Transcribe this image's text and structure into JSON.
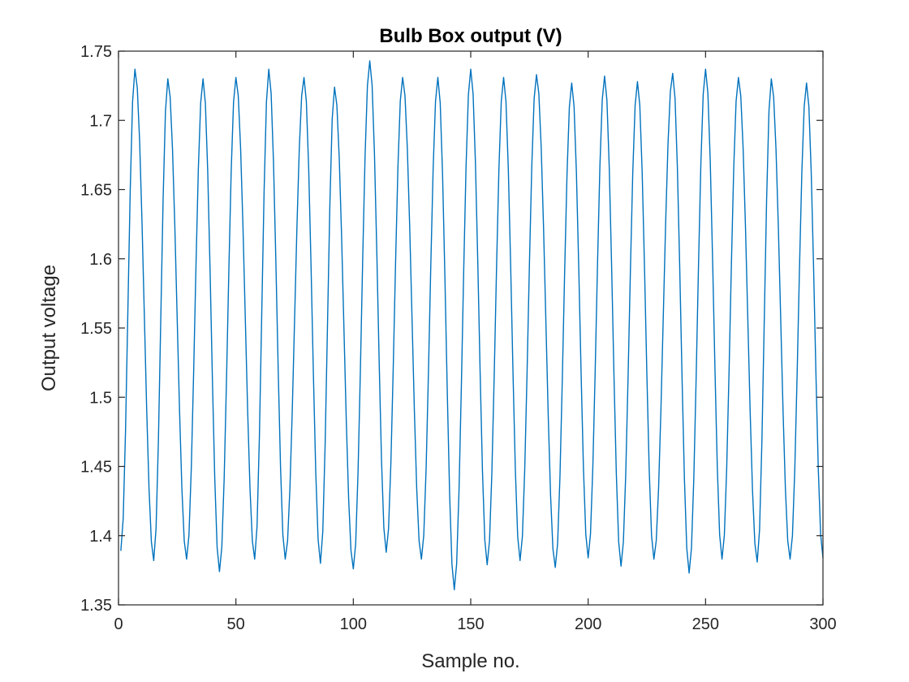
{
  "chart_data": {
    "type": "line",
    "title": "Bulb Box output (V)",
    "xlabel": "Sample no.",
    "ylabel": "Output voltage",
    "xlim": [
      0,
      300
    ],
    "ylim": [
      1.35,
      1.75
    ],
    "xticks": [
      0,
      50,
      100,
      150,
      200,
      250,
      300
    ],
    "xtick_labels": [
      "0",
      "50",
      "100",
      "150",
      "200",
      "250",
      "300"
    ],
    "yticks": [
      1.35,
      1.4,
      1.45,
      1.5,
      1.55,
      1.6,
      1.65,
      1.7,
      1.75
    ],
    "ytick_labels": [
      "1.35",
      "1.4",
      "1.45",
      "1.5",
      "1.55",
      "1.6",
      "1.65",
      "1.7",
      "1.75"
    ],
    "grid": false,
    "series": [
      {
        "color": "#0072BD",
        "peaks": [
          [
            7,
            1.737
          ],
          [
            21,
            1.73
          ],
          [
            36,
            1.73
          ],
          [
            50,
            1.731
          ],
          [
            64,
            1.737
          ],
          [
            79,
            1.731
          ],
          [
            92,
            1.724
          ],
          [
            107,
            1.743
          ],
          [
            121,
            1.731
          ],
          [
            136,
            1.731
          ],
          [
            150,
            1.737
          ],
          [
            164,
            1.731
          ],
          [
            178,
            1.733
          ],
          [
            193,
            1.727
          ],
          [
            207,
            1.732
          ],
          [
            221,
            1.728
          ],
          [
            236,
            1.734
          ],
          [
            250,
            1.737
          ],
          [
            264,
            1.731
          ],
          [
            278,
            1.73
          ],
          [
            293,
            1.727
          ]
        ],
        "troughs": [
          [
            1,
            1.389
          ],
          [
            15,
            1.382
          ],
          [
            29,
            1.383
          ],
          [
            43,
            1.374
          ],
          [
            58,
            1.383
          ],
          [
            71,
            1.383
          ],
          [
            86,
            1.38
          ],
          [
            100,
            1.376
          ],
          [
            114,
            1.388
          ],
          [
            129,
            1.383
          ],
          [
            143,
            1.361
          ],
          [
            157,
            1.379
          ],
          [
            171,
            1.382
          ],
          [
            186,
            1.377
          ],
          [
            200,
            1.384
          ],
          [
            214,
            1.378
          ],
          [
            228,
            1.383
          ],
          [
            243,
            1.373
          ],
          [
            257,
            1.383
          ],
          [
            272,
            1.381
          ],
          [
            286,
            1.383
          ],
          [
            300,
            1.384
          ]
        ]
      }
    ]
  }
}
